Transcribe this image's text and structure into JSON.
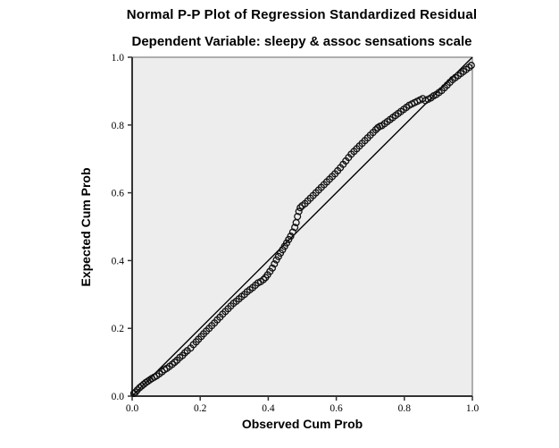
{
  "header": {
    "title": "Normal P-P Plot of Regression Standardized Residual",
    "subtitle": "Dependent Variable: sleepy & assoc sensations scale"
  },
  "chart_data": {
    "type": "scatter",
    "title": "Normal P-P Plot of Regression Standardized Residual",
    "subtitle": "Dependent Variable: sleepy & assoc sensations scale",
    "xlabel": "Observed Cum Prob",
    "ylabel": "Expected Cum Prob",
    "xlim": [
      0.0,
      1.0
    ],
    "ylim": [
      0.0,
      1.0
    ],
    "x_ticks": [
      "0.0",
      "0.2",
      "0.4",
      "0.6",
      "0.8",
      "1.0"
    ],
    "y_ticks": [
      "0.0",
      "0.2",
      "0.4",
      "0.6",
      "0.8",
      "1.0"
    ],
    "grid": false,
    "legend": "none",
    "plot_bg_color": "#ededed",
    "marker": "open-circle",
    "marker_color": "#111111",
    "reference_line": {
      "from": [
        0.0,
        0.0
      ],
      "to": [
        1.0,
        1.0
      ],
      "color": "#000000"
    },
    "points": [
      [
        0.005,
        0.008
      ],
      [
        0.01,
        0.012
      ],
      [
        0.015,
        0.018
      ],
      [
        0.022,
        0.025
      ],
      [
        0.028,
        0.03
      ],
      [
        0.034,
        0.035
      ],
      [
        0.04,
        0.04
      ],
      [
        0.046,
        0.044
      ],
      [
        0.052,
        0.048
      ],
      [
        0.058,
        0.052
      ],
      [
        0.065,
        0.056
      ],
      [
        0.072,
        0.06
      ],
      [
        0.08,
        0.066
      ],
      [
        0.088,
        0.072
      ],
      [
        0.095,
        0.078
      ],
      [
        0.102,
        0.082
      ],
      [
        0.11,
        0.088
      ],
      [
        0.118,
        0.094
      ],
      [
        0.125,
        0.1
      ],
      [
        0.132,
        0.106
      ],
      [
        0.14,
        0.114
      ],
      [
        0.148,
        0.12
      ],
      [
        0.155,
        0.128
      ],
      [
        0.162,
        0.134
      ],
      [
        0.172,
        0.142
      ],
      [
        0.18,
        0.152
      ],
      [
        0.188,
        0.16
      ],
      [
        0.195,
        0.168
      ],
      [
        0.203,
        0.176
      ],
      [
        0.21,
        0.184
      ],
      [
        0.218,
        0.192
      ],
      [
        0.226,
        0.2
      ],
      [
        0.234,
        0.208
      ],
      [
        0.242,
        0.216
      ],
      [
        0.25,
        0.225
      ],
      [
        0.258,
        0.233
      ],
      [
        0.266,
        0.242
      ],
      [
        0.274,
        0.25
      ],
      [
        0.282,
        0.258
      ],
      [
        0.29,
        0.266
      ],
      [
        0.298,
        0.274
      ],
      [
        0.306,
        0.28
      ],
      [
        0.314,
        0.287
      ],
      [
        0.322,
        0.294
      ],
      [
        0.33,
        0.3
      ],
      [
        0.338,
        0.308
      ],
      [
        0.346,
        0.314
      ],
      [
        0.354,
        0.32
      ],
      [
        0.362,
        0.327
      ],
      [
        0.37,
        0.334
      ],
      [
        0.378,
        0.338
      ],
      [
        0.386,
        0.344
      ],
      [
        0.392,
        0.35
      ],
      [
        0.398,
        0.358
      ],
      [
        0.405,
        0.368
      ],
      [
        0.412,
        0.378
      ],
      [
        0.418,
        0.39
      ],
      [
        0.424,
        0.402
      ],
      [
        0.43,
        0.412
      ],
      [
        0.436,
        0.422
      ],
      [
        0.442,
        0.432
      ],
      [
        0.448,
        0.442
      ],
      [
        0.454,
        0.452
      ],
      [
        0.46,
        0.462
      ],
      [
        0.466,
        0.472
      ],
      [
        0.472,
        0.484
      ],
      [
        0.478,
        0.498
      ],
      [
        0.482,
        0.512
      ],
      [
        0.486,
        0.53
      ],
      [
        0.49,
        0.545
      ],
      [
        0.494,
        0.556
      ],
      [
        0.5,
        0.562
      ],
      [
        0.508,
        0.568
      ],
      [
        0.516,
        0.576
      ],
      [
        0.524,
        0.584
      ],
      [
        0.532,
        0.592
      ],
      [
        0.54,
        0.6
      ],
      [
        0.548,
        0.608
      ],
      [
        0.556,
        0.616
      ],
      [
        0.564,
        0.624
      ],
      [
        0.572,
        0.632
      ],
      [
        0.58,
        0.64
      ],
      [
        0.588,
        0.648
      ],
      [
        0.596,
        0.656
      ],
      [
        0.604,
        0.665
      ],
      [
        0.612,
        0.674
      ],
      [
        0.62,
        0.684
      ],
      [
        0.628,
        0.694
      ],
      [
        0.636,
        0.704
      ],
      [
        0.644,
        0.714
      ],
      [
        0.652,
        0.722
      ],
      [
        0.66,
        0.73
      ],
      [
        0.668,
        0.738
      ],
      [
        0.676,
        0.746
      ],
      [
        0.684,
        0.754
      ],
      [
        0.692,
        0.762
      ],
      [
        0.7,
        0.77
      ],
      [
        0.708,
        0.778
      ],
      [
        0.716,
        0.786
      ],
      [
        0.722,
        0.792
      ],
      [
        0.728,
        0.796
      ],
      [
        0.734,
        0.798
      ],
      [
        0.742,
        0.804
      ],
      [
        0.75,
        0.81
      ],
      [
        0.758,
        0.816
      ],
      [
        0.766,
        0.822
      ],
      [
        0.774,
        0.828
      ],
      [
        0.782,
        0.834
      ],
      [
        0.79,
        0.84
      ],
      [
        0.798,
        0.846
      ],
      [
        0.806,
        0.852
      ],
      [
        0.814,
        0.858
      ],
      [
        0.822,
        0.862
      ],
      [
        0.83,
        0.866
      ],
      [
        0.838,
        0.87
      ],
      [
        0.846,
        0.874
      ],
      [
        0.854,
        0.878
      ],
      [
        0.862,
        0.872
      ],
      [
        0.87,
        0.876
      ],
      [
        0.878,
        0.88
      ],
      [
        0.886,
        0.886
      ],
      [
        0.894,
        0.89
      ],
      [
        0.902,
        0.896
      ],
      [
        0.91,
        0.902
      ],
      [
        0.918,
        0.91
      ],
      [
        0.926,
        0.918
      ],
      [
        0.934,
        0.926
      ],
      [
        0.942,
        0.934
      ],
      [
        0.95,
        0.94
      ],
      [
        0.958,
        0.946
      ],
      [
        0.966,
        0.952
      ],
      [
        0.974,
        0.958
      ],
      [
        0.982,
        0.964
      ],
      [
        0.99,
        0.97
      ],
      [
        0.997,
        0.976
      ]
    ]
  }
}
